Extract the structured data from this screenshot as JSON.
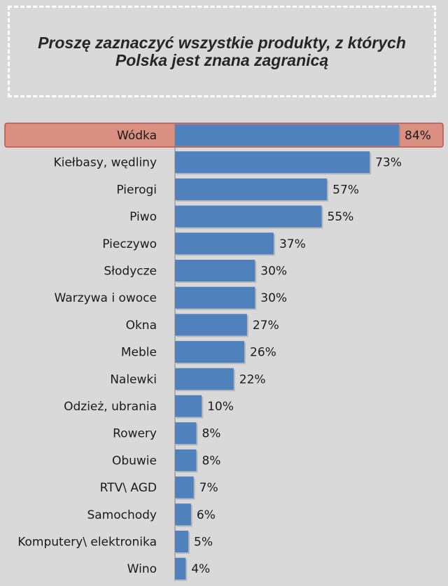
{
  "title": "Proszę zaznaczyć wszystkie produkty, z których Polska jest znana zagranicą",
  "chart_data": {
    "type": "bar",
    "orientation": "horizontal",
    "categories": [
      "Wódka",
      "Kiełbasy, wędliny",
      "Pierogi",
      "Piwo",
      "Pieczywo",
      "Słodycze",
      "Warzywa i owoce",
      "Okna",
      "Meble",
      "Nalewki",
      "Odzież, ubrania",
      "Rowery",
      "Obuwie",
      "RTV\\ AGD",
      "Samochody",
      "Komputery\\ elektronika",
      "Wino"
    ],
    "values": [
      84,
      73,
      57,
      55,
      37,
      30,
      30,
      27,
      26,
      22,
      10,
      8,
      8,
      7,
      6,
      5,
      4
    ],
    "value_labels": [
      "84%",
      "73%",
      "57%",
      "55%",
      "37%",
      "30%",
      "30%",
      "27%",
      "26%",
      "22%",
      "10%",
      "8%",
      "8%",
      "7%",
      "6%",
      "5%",
      "4%"
    ],
    "unit": "%",
    "highlighted_category": "Wódka",
    "xlim": [
      0,
      84
    ],
    "grid": false,
    "legend": "none",
    "colors": {
      "bar": "#4f81bd",
      "highlight_fill": "#d99080",
      "highlight_border": "#c0504d",
      "axis": "#7f7f7f",
      "background": "#d9d9d9"
    }
  }
}
